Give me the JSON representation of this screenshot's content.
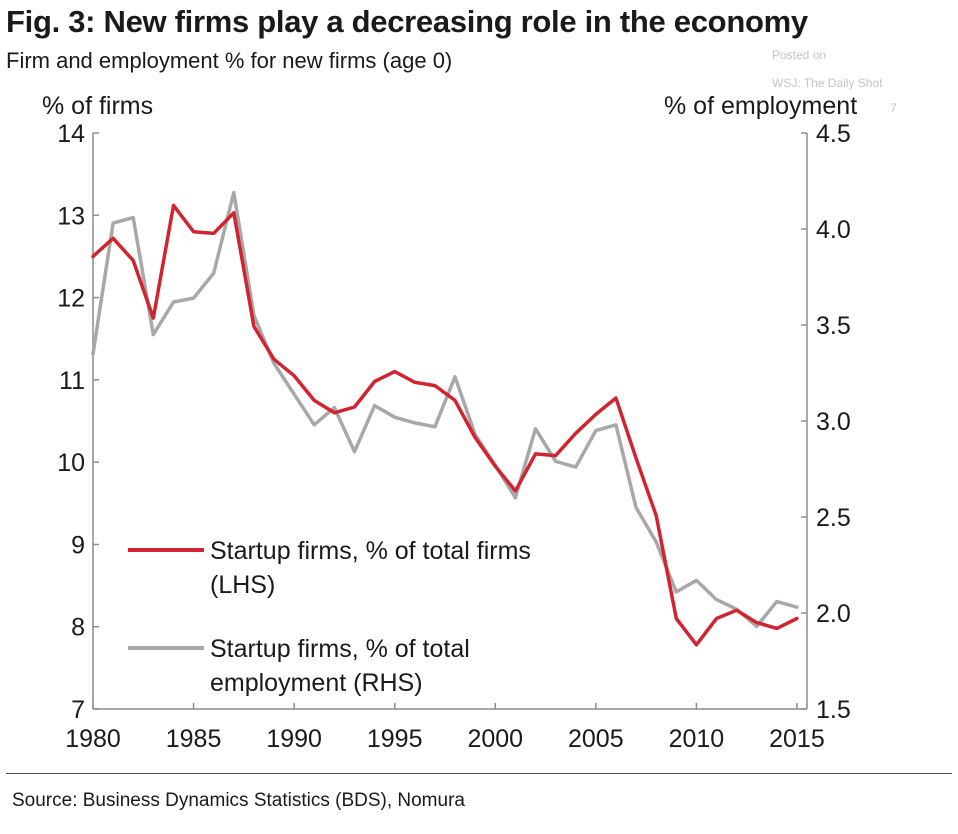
{
  "title": "Fig. 3: New firms play a decreasing role in the economy",
  "subtitle": "Firm and employment % for new firms (age 0)",
  "watermark": [
    "Posted on",
    "WSJ: The Daily Shot",
    "7"
  ],
  "source": "Source: Business Dynamics Statistics (BDS), Nomura",
  "chart_data": {
    "type": "line",
    "ylabel_left": "% of firms",
    "ylabel_right": "% of employment",
    "xlim": [
      1980,
      2015.5
    ],
    "ylim_left": [
      7,
      14
    ],
    "ylim_right": [
      1.5,
      4.5
    ],
    "x_ticks": [
      "1980",
      "1985",
      "1990",
      "1995",
      "2000",
      "2005",
      "2010",
      "2015"
    ],
    "y_ticks_left": [
      "7",
      "8",
      "9",
      "10",
      "11",
      "12",
      "13",
      "14"
    ],
    "y_ticks_right": [
      "1.5",
      "2.0",
      "2.5",
      "3.0",
      "3.5",
      "4.0",
      "4.5"
    ],
    "grid": false,
    "legend_placement": "bottom-left",
    "x": [
      1980,
      1981,
      1982,
      1983,
      1984,
      1985,
      1986,
      1987,
      1988,
      1989,
      1990,
      1991,
      1992,
      1993,
      1994,
      1995,
      1996,
      1997,
      1998,
      1999,
      2000,
      2001,
      2002,
      2003,
      2004,
      2005,
      2006,
      2007,
      2008,
      2009,
      2010,
      2011,
      2012,
      2013,
      2014,
      2015
    ],
    "series": [
      {
        "name": "Startup firms, % of total firms (LHS)",
        "name_lines": [
          "Startup firms, % of total firms",
          "(LHS)"
        ],
        "axis": "left",
        "color": "#d22430",
        "values": [
          12.5,
          12.72,
          12.45,
          11.75,
          13.12,
          12.8,
          12.78,
          13.03,
          11.65,
          11.25,
          11.05,
          10.75,
          10.6,
          10.67,
          10.98,
          11.1,
          10.97,
          10.93,
          10.75,
          10.3,
          9.95,
          9.65,
          10.1,
          10.08,
          10.35,
          10.58,
          10.78,
          10.05,
          9.35,
          8.1,
          7.78,
          8.1,
          8.2,
          8.05,
          7.98,
          8.1
        ]
      },
      {
        "name": "Startup firms, % of total employment (RHS)",
        "name_lines": [
          "Startup firms, % of total",
          "employment (RHS)"
        ],
        "axis": "right",
        "color": "#a8a8a8",
        "values": [
          3.35,
          4.03,
          4.06,
          3.45,
          3.62,
          3.64,
          3.77,
          4.19,
          3.55,
          3.3,
          3.14,
          2.98,
          3.07,
          2.84,
          3.08,
          3.02,
          2.99,
          2.97,
          3.23,
          2.93,
          2.77,
          2.6,
          2.96,
          2.79,
          2.76,
          2.95,
          2.98,
          2.55,
          2.37,
          2.11,
          2.17,
          2.07,
          2.02,
          1.93,
          2.06,
          2.03
        ]
      }
    ]
  }
}
